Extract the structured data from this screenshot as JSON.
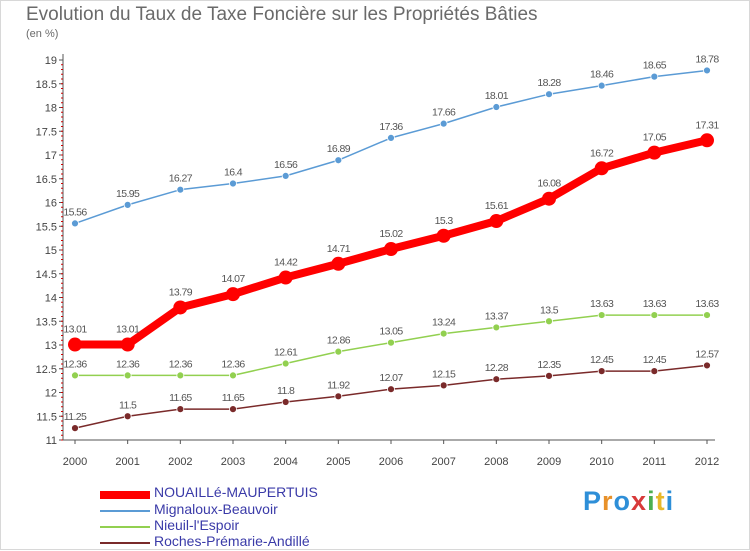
{
  "title": "Evolution du Taux de Taxe Foncière sur les Propriétés Bâties",
  "unit": "(en %)",
  "logo": {
    "letters": [
      "P",
      "r",
      "o",
      "x",
      "i",
      "t",
      "i"
    ],
    "colors": [
      "#2e8fd8",
      "#e8912a",
      "#2e8fd8",
      "#d83a3a",
      "#4caf50",
      "#e8b82a",
      "#2e8fd8"
    ]
  },
  "chart_data": {
    "type": "line",
    "x": [
      "2000",
      "2001",
      "2002",
      "2003",
      "2004",
      "2005",
      "2006",
      "2007",
      "2008",
      "2009",
      "2010",
      "2011",
      "2012"
    ],
    "ylim": [
      11,
      19
    ],
    "yticks": [
      "11",
      "11.5",
      "12",
      "12.5",
      "13",
      "13.5",
      "14",
      "14.5",
      "15",
      "15.5",
      "16",
      "16.5",
      "17",
      "17.5",
      "18",
      "18.5",
      "19"
    ],
    "grid": false,
    "legend_position": "bottom-left",
    "series": [
      {
        "name": "NOUAILLé-MAUPERTUIS",
        "color": "#ff0000",
        "highlight": true,
        "values": [
          13.01,
          13.01,
          13.79,
          14.07,
          14.42,
          14.71,
          15.02,
          15.3,
          15.61,
          16.08,
          16.72,
          17.05,
          17.31
        ],
        "labels": [
          "13.01",
          "13.01",
          "13.79",
          "14.07",
          "14.42",
          "14.71",
          "15.02",
          "15.3",
          "15.61",
          "16.08",
          "16.72",
          "17.05",
          "17.31"
        ]
      },
      {
        "name": "Mignaloux-Beauvoir",
        "color": "#5b9bd5",
        "highlight": false,
        "values": [
          15.56,
          15.95,
          16.27,
          16.4,
          16.56,
          16.89,
          17.36,
          17.66,
          18.01,
          18.28,
          18.46,
          18.65,
          18.78
        ],
        "labels": [
          "15.56",
          "15.95",
          "16.27",
          "16.4",
          "16.56",
          "16.89",
          "17.36",
          "17.66",
          "18.01",
          "18.28",
          "18.46",
          "18.65",
          "18.78"
        ]
      },
      {
        "name": "Nieuil-l'Espoir",
        "color": "#92d050",
        "highlight": false,
        "values": [
          12.36,
          12.36,
          12.36,
          12.36,
          12.61,
          12.86,
          13.05,
          13.24,
          13.37,
          13.5,
          13.63,
          13.63,
          13.63
        ],
        "labels": [
          "12.36",
          "12.36",
          "12.36",
          "12.36",
          "12.61",
          "12.86",
          "13.05",
          "13.24",
          "13.37",
          "13.5",
          "13.63",
          "13.63",
          "13.63"
        ]
      },
      {
        "name": "Roches-Prémarie-Andillé",
        "color": "#7a2a2a",
        "highlight": false,
        "values": [
          11.25,
          11.5,
          11.65,
          11.65,
          11.8,
          11.92,
          12.07,
          12.15,
          12.28,
          12.35,
          12.45,
          12.45,
          12.57
        ],
        "labels": [
          "11.25",
          "11.5",
          "11.65",
          "11.65",
          "11.8",
          "11.92",
          "12.07",
          "12.15",
          "12.28",
          "12.35",
          "12.45",
          "12.45",
          "12.57"
        ]
      }
    ]
  }
}
